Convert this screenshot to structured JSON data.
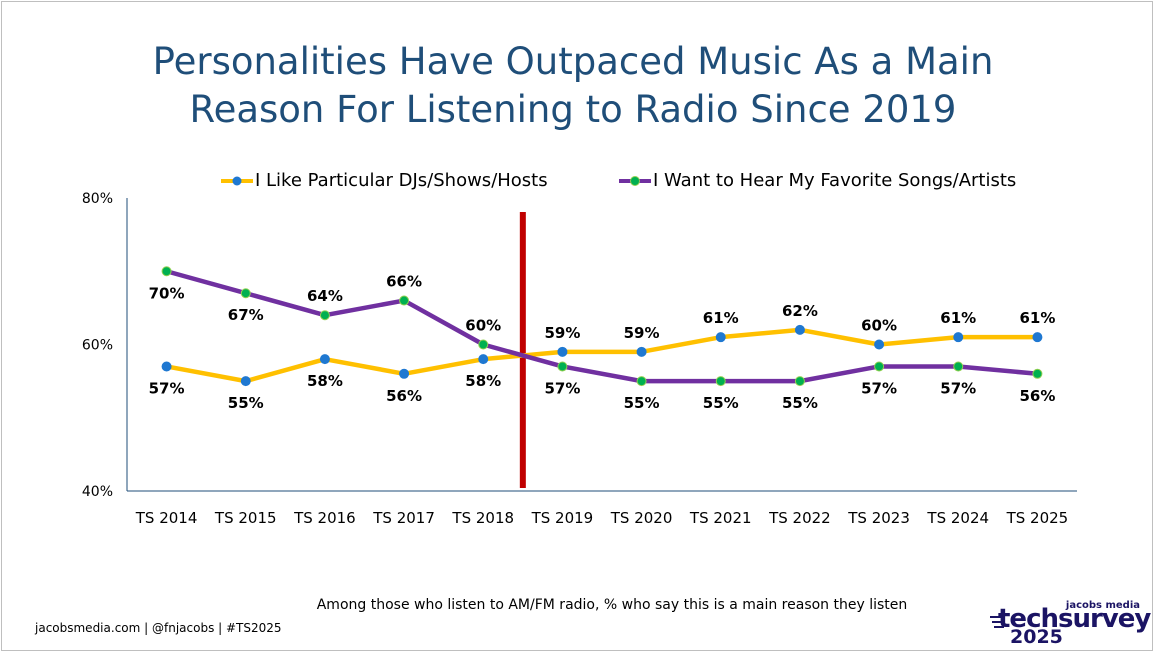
{
  "title_lines": [
    "Personalities Have Outpaced Music As a Main",
    "Reason For Listening to Radio Since 2019"
  ],
  "footnote": "Among those who listen to AM/FM radio, % who say this is a main reason they listen",
  "footer": "jacobsmedia.com   |   @fnjacobs   |   #TS2025",
  "logo": {
    "small": "jacobs media",
    "main": "techsurvey",
    "year": "2025"
  },
  "colors": {
    "title": "#1f4e79",
    "series_djs_line": "#ffc000",
    "series_djs_marker": "#1f78d1",
    "series_songs_line": "#7030a0",
    "series_songs_marker": "#00b050",
    "marker_edge": "#92d050",
    "divider": "#c00000",
    "axis": "#1f4e79",
    "logo": "#1b1464"
  },
  "chart_data": {
    "type": "line",
    "categories": [
      "TS 2014",
      "TS 2015",
      "TS 2016",
      "TS 2017",
      "TS 2018",
      "TS 2019",
      "TS 2020",
      "TS 2021",
      "TS 2022",
      "TS 2023",
      "TS 2024",
      "TS 2025"
    ],
    "ylim": [
      40,
      80
    ],
    "yticks": [
      40,
      60,
      80
    ],
    "ytick_labels": [
      "40%",
      "60%",
      "80%"
    ],
    "legend_position": "top",
    "grid": false,
    "divider_between": [
      "TS 2018",
      "TS 2019"
    ],
    "series": [
      {
        "name": "I Like Particular DJs/Shows/Hosts",
        "values": [
          57,
          55,
          58,
          56,
          58,
          59,
          59,
          61,
          62,
          60,
          61,
          61
        ],
        "labels": [
          "57%",
          "55%",
          "58%",
          "56%",
          "58%",
          "59%",
          "59%",
          "61%",
          "62%",
          "60%",
          "61%",
          "61%"
        ],
        "label_position": [
          "below",
          "below",
          "below",
          "below",
          "below",
          "above",
          "above",
          "above",
          "above",
          "above",
          "above",
          "above"
        ]
      },
      {
        "name": "I Want to Hear My Favorite Songs/Artists",
        "values": [
          70,
          67,
          64,
          66,
          60,
          57,
          55,
          55,
          55,
          57,
          57,
          56
        ],
        "labels": [
          "70%",
          "67%",
          "64%",
          "66%",
          "60%",
          "57%",
          "55%",
          "55%",
          "55%",
          "57%",
          "57%",
          "56%"
        ],
        "label_position": [
          "below",
          "below",
          "above",
          "above",
          "above",
          "below",
          "below",
          "below",
          "below",
          "below",
          "below",
          "below"
        ]
      }
    ]
  }
}
